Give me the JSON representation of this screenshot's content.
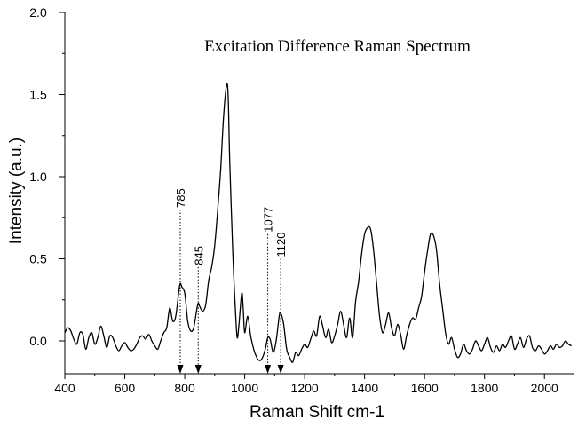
{
  "chart_data": {
    "type": "line",
    "title": "Excitation Difference Raman Spectrum",
    "xlabel": "Raman Shift cm-1",
    "ylabel": "Intensity (a.u.)",
    "xlim": [
      400,
      2100
    ],
    "ylim": [
      -0.2,
      2.0
    ],
    "x_ticks": [
      400,
      600,
      800,
      1000,
      1200,
      1400,
      1600,
      1800,
      2000
    ],
    "x_tick_labels": [
      "400",
      "600",
      "800",
      "1000",
      "1200",
      "1400",
      "1600",
      "1800",
      "2000"
    ],
    "y_ticks": [
      0.0,
      0.5,
      1.0,
      1.5,
      2.0
    ],
    "y_tick_labels": [
      "0.0",
      "0.5",
      "1.0",
      "1.5",
      "2.0"
    ],
    "grid": false,
    "legend": "none",
    "series": [
      {
        "color": "#000000",
        "points": [
          [
            400,
            0.05
          ],
          [
            410,
            0.08
          ],
          [
            420,
            0.06
          ],
          [
            430,
            0.01
          ],
          [
            440,
            -0.02
          ],
          [
            450,
            0.05
          ],
          [
            460,
            0.04
          ],
          [
            470,
            -0.05
          ],
          [
            480,
            0.02
          ],
          [
            490,
            0.05
          ],
          [
            500,
            -0.02
          ],
          [
            510,
            0.02
          ],
          [
            520,
            0.09
          ],
          [
            530,
            0.03
          ],
          [
            540,
            -0.04
          ],
          [
            550,
            0.03
          ],
          [
            560,
            0.02
          ],
          [
            570,
            -0.03
          ],
          [
            580,
            -0.06
          ],
          [
            590,
            -0.03
          ],
          [
            600,
            -0.01
          ],
          [
            610,
            -0.04
          ],
          [
            620,
            -0.06
          ],
          [
            630,
            -0.05
          ],
          [
            640,
            -0.02
          ],
          [
            650,
            0.02
          ],
          [
            660,
            0.03
          ],
          [
            670,
            0.01
          ],
          [
            680,
            0.04
          ],
          [
            690,
            0.0
          ],
          [
            700,
            -0.03
          ],
          [
            710,
            -0.05
          ],
          [
            720,
            0.0
          ],
          [
            730,
            0.05
          ],
          [
            740,
            0.08
          ],
          [
            750,
            0.2
          ],
          [
            760,
            0.12
          ],
          [
            770,
            0.15
          ],
          [
            780,
            0.3
          ],
          [
            785,
            0.35
          ],
          [
            790,
            0.33
          ],
          [
            800,
            0.29
          ],
          [
            810,
            0.12
          ],
          [
            820,
            0.06
          ],
          [
            830,
            0.08
          ],
          [
            840,
            0.19
          ],
          [
            845,
            0.23
          ],
          [
            850,
            0.21
          ],
          [
            860,
            0.18
          ],
          [
            870,
            0.22
          ],
          [
            880,
            0.37
          ],
          [
            890,
            0.45
          ],
          [
            900,
            0.58
          ],
          [
            910,
            0.8
          ],
          [
            920,
            1.05
          ],
          [
            930,
            1.38
          ],
          [
            940,
            1.56
          ],
          [
            945,
            1.48
          ],
          [
            950,
            1.1
          ],
          [
            960,
            0.55
          ],
          [
            970,
            0.15
          ],
          [
            975,
            0.02
          ],
          [
            980,
            0.08
          ],
          [
            990,
            0.29
          ],
          [
            995,
            0.2
          ],
          [
            1000,
            0.05
          ],
          [
            1010,
            0.15
          ],
          [
            1020,
            0.03
          ],
          [
            1030,
            -0.05
          ],
          [
            1040,
            -0.1
          ],
          [
            1050,
            -0.12
          ],
          [
            1060,
            -0.1
          ],
          [
            1070,
            -0.04
          ],
          [
            1077,
            0.02
          ],
          [
            1085,
            0.01
          ],
          [
            1095,
            -0.07
          ],
          [
            1105,
            0.0
          ],
          [
            1115,
            0.15
          ],
          [
            1120,
            0.17
          ],
          [
            1130,
            0.1
          ],
          [
            1140,
            -0.05
          ],
          [
            1150,
            -0.1
          ],
          [
            1160,
            -0.13
          ],
          [
            1170,
            -0.07
          ],
          [
            1180,
            -0.09
          ],
          [
            1190,
            -0.05
          ],
          [
            1200,
            -0.02
          ],
          [
            1210,
            -0.04
          ],
          [
            1220,
            0.01
          ],
          [
            1230,
            0.06
          ],
          [
            1240,
            0.03
          ],
          [
            1250,
            0.15
          ],
          [
            1260,
            0.09
          ],
          [
            1270,
            0.02
          ],
          [
            1280,
            0.07
          ],
          [
            1290,
            -0.01
          ],
          [
            1300,
            0.03
          ],
          [
            1310,
            0.1
          ],
          [
            1320,
            0.18
          ],
          [
            1330,
            0.1
          ],
          [
            1340,
            0.02
          ],
          [
            1350,
            0.14
          ],
          [
            1360,
            0.02
          ],
          [
            1370,
            0.24
          ],
          [
            1380,
            0.36
          ],
          [
            1390,
            0.53
          ],
          [
            1400,
            0.65
          ],
          [
            1410,
            0.69
          ],
          [
            1420,
            0.68
          ],
          [
            1430,
            0.55
          ],
          [
            1440,
            0.35
          ],
          [
            1450,
            0.15
          ],
          [
            1460,
            0.05
          ],
          [
            1470,
            0.1
          ],
          [
            1480,
            0.17
          ],
          [
            1490,
            0.08
          ],
          [
            1500,
            0.03
          ],
          [
            1510,
            0.1
          ],
          [
            1520,
            0.04
          ],
          [
            1530,
            -0.05
          ],
          [
            1540,
            0.03
          ],
          [
            1550,
            0.1
          ],
          [
            1560,
            0.14
          ],
          [
            1570,
            0.13
          ],
          [
            1580,
            0.2
          ],
          [
            1590,
            0.27
          ],
          [
            1600,
            0.42
          ],
          [
            1610,
            0.55
          ],
          [
            1620,
            0.65
          ],
          [
            1630,
            0.64
          ],
          [
            1640,
            0.55
          ],
          [
            1650,
            0.35
          ],
          [
            1660,
            0.2
          ],
          [
            1670,
            0.05
          ],
          [
            1680,
            -0.02
          ],
          [
            1690,
            0.02
          ],
          [
            1700,
            -0.05
          ],
          [
            1710,
            -0.1
          ],
          [
            1720,
            -0.08
          ],
          [
            1730,
            -0.02
          ],
          [
            1740,
            -0.06
          ],
          [
            1750,
            -0.08
          ],
          [
            1760,
            -0.05
          ],
          [
            1770,
            0.0
          ],
          [
            1780,
            -0.03
          ],
          [
            1790,
            -0.06
          ],
          [
            1800,
            -0.02
          ],
          [
            1810,
            0.02
          ],
          [
            1820,
            -0.04
          ],
          [
            1830,
            -0.07
          ],
          [
            1840,
            -0.03
          ],
          [
            1850,
            -0.06
          ],
          [
            1860,
            -0.02
          ],
          [
            1870,
            -0.04
          ],
          [
            1880,
            0.0
          ],
          [
            1890,
            0.03
          ],
          [
            1900,
            -0.05
          ],
          [
            1910,
            -0.02
          ],
          [
            1920,
            0.02
          ],
          [
            1930,
            -0.04
          ],
          [
            1940,
            0.01
          ],
          [
            1950,
            0.03
          ],
          [
            1960,
            -0.04
          ],
          [
            1970,
            -0.06
          ],
          [
            1980,
            -0.03
          ],
          [
            1990,
            -0.05
          ],
          [
            2000,
            -0.08
          ],
          [
            2010,
            -0.06
          ],
          [
            2020,
            -0.03
          ],
          [
            2030,
            -0.05
          ],
          [
            2040,
            -0.02
          ],
          [
            2050,
            -0.04
          ],
          [
            2060,
            -0.03
          ],
          [
            2070,
            0.0
          ],
          [
            2080,
            -0.02
          ],
          [
            2090,
            -0.03
          ]
        ]
      }
    ],
    "annotations": [
      {
        "label": "785",
        "x": 785,
        "label_y": 0.8
      },
      {
        "label": "845",
        "x": 845,
        "label_y": 0.45
      },
      {
        "label": "1077",
        "x": 1077,
        "label_y": 0.65
      },
      {
        "label": "1120",
        "x": 1120,
        "label_y": 0.5
      }
    ]
  }
}
